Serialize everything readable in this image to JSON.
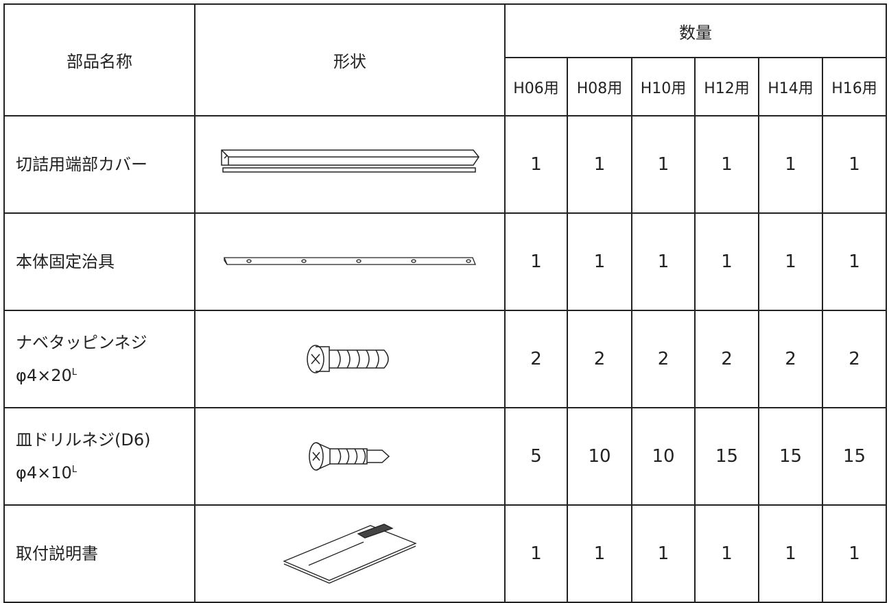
{
  "table": {
    "headers": {
      "name": "部品名称",
      "shape": "形状",
      "quantity": "数量",
      "models": [
        "H06用",
        "H08用",
        "H10用",
        "H12用",
        "H14用",
        "H16用"
      ]
    },
    "rows": [
      {
        "name": [
          "切詰用端部カバー"
        ],
        "quantities": [
          1,
          1,
          1,
          1,
          1,
          1
        ]
      },
      {
        "name": [
          "本体固定治具"
        ],
        "quantities": [
          1,
          1,
          1,
          1,
          1,
          1
        ]
      },
      {
        "name": [
          "ナベタッピンネジ",
          "φ4×20"
        ],
        "suffix": "L",
        "quantities": [
          2,
          2,
          2,
          2,
          2,
          2
        ]
      },
      {
        "name": [
          "皿ドリルネジ(D6)",
          "φ4×10"
        ],
        "suffix": "L",
        "quantities": [
          5,
          10,
          10,
          15,
          15,
          15
        ]
      },
      {
        "name": [
          "取付説明書"
        ],
        "quantities": [
          1,
          1,
          1,
          1,
          1,
          1
        ]
      }
    ]
  }
}
